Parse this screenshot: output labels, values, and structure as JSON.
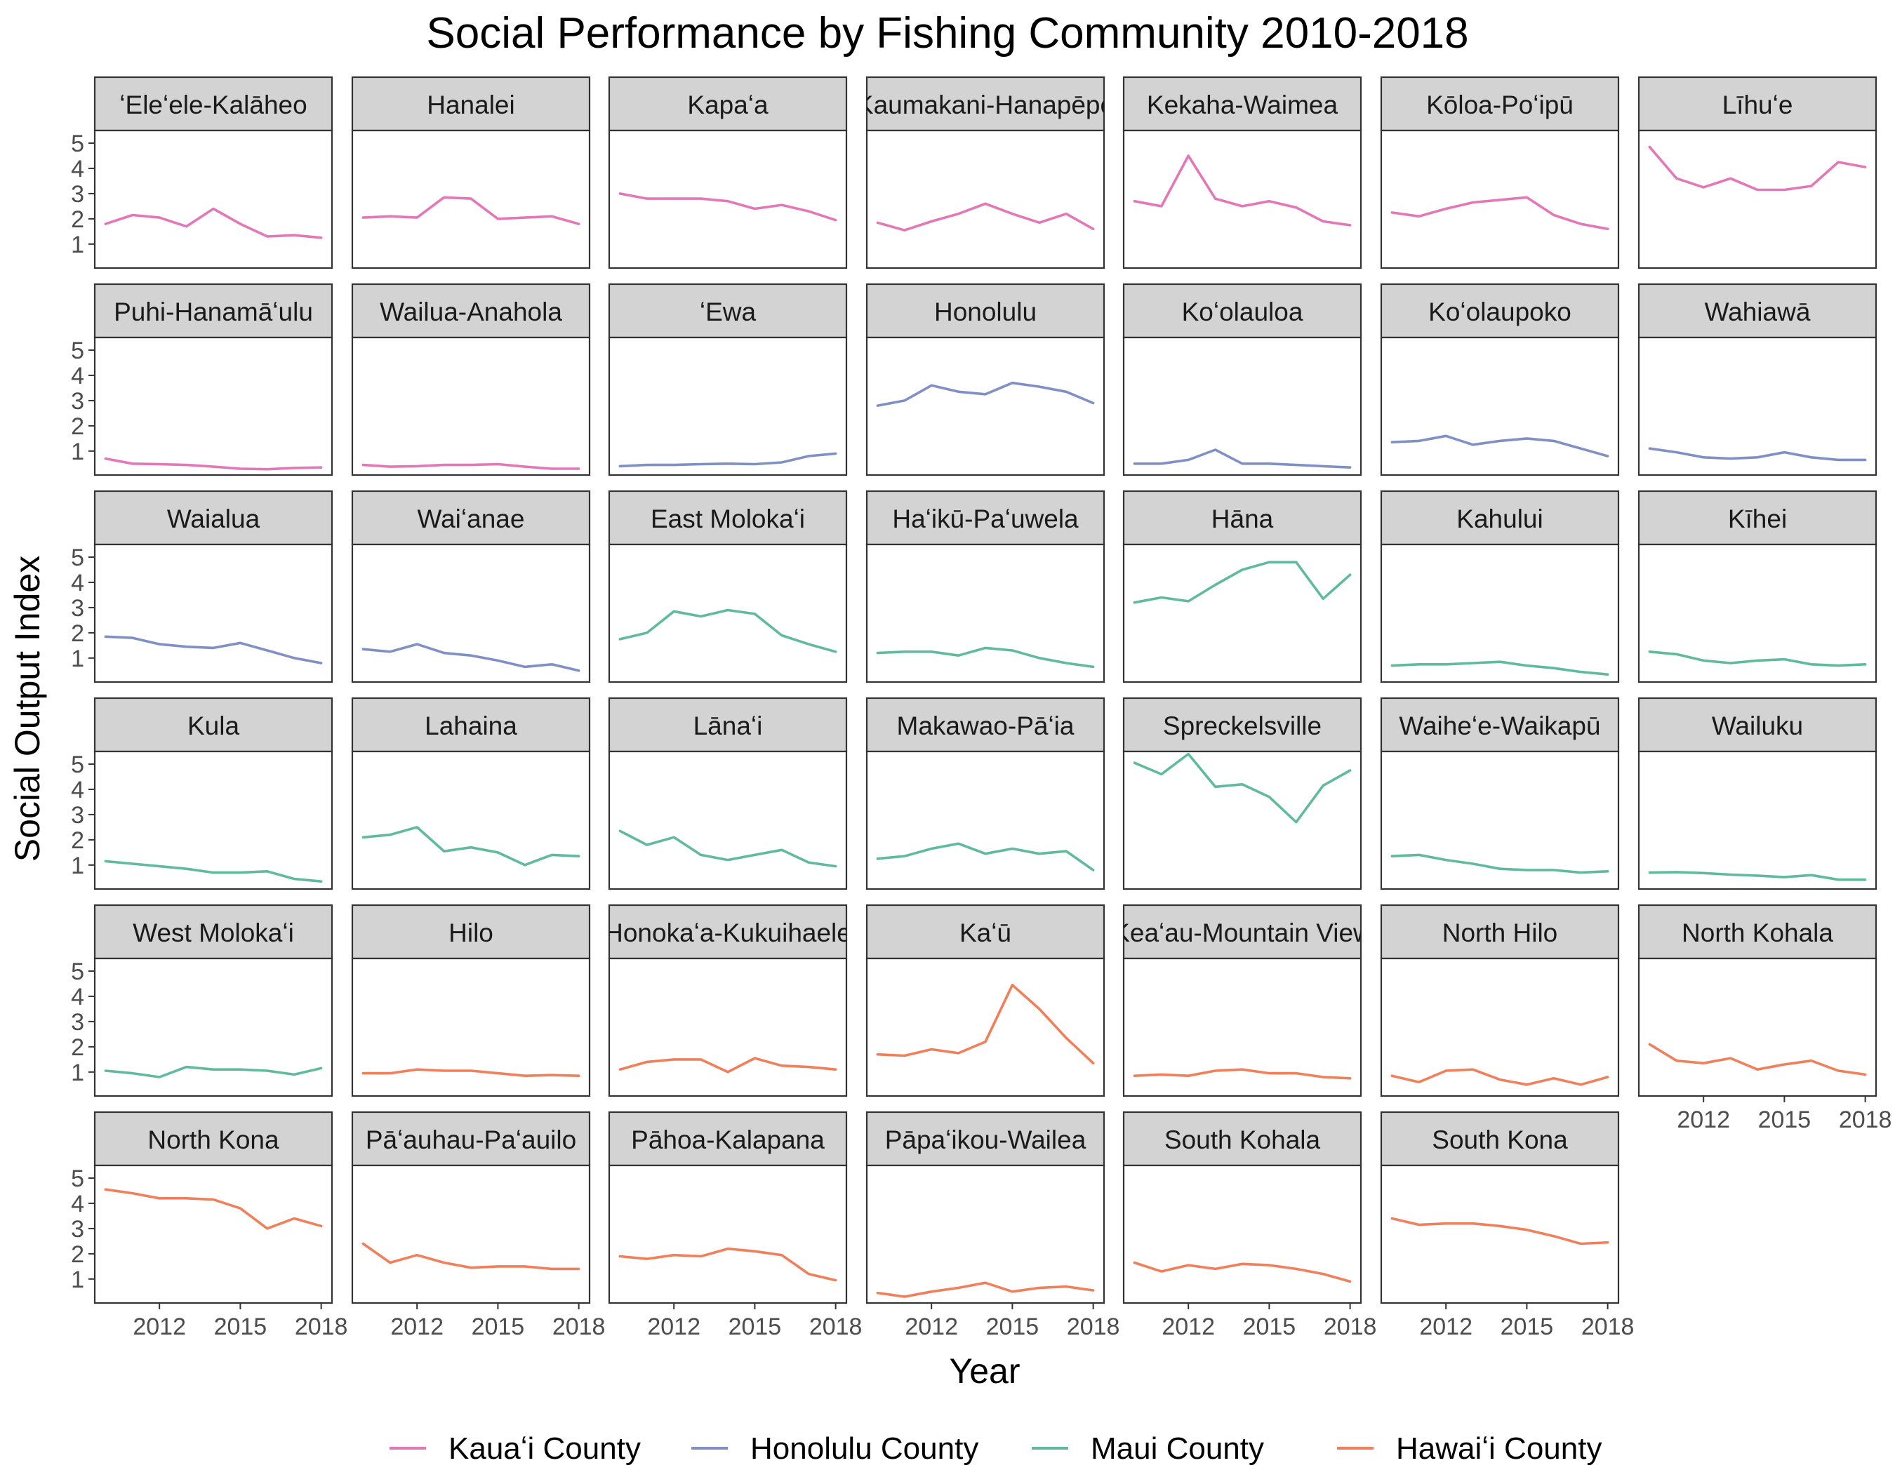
{
  "chart_data": {
    "type": "line",
    "title": "Social Performance by Fishing Community 2010-2018",
    "xlabel": "Year",
    "ylabel": "Social Output Index",
    "x": [
      2010,
      2011,
      2012,
      2013,
      2014,
      2015,
      2016,
      2017,
      2018
    ],
    "x_ticks": [
      2012,
      2015,
      2018
    ],
    "x_tick_labels": [
      "2012",
      "2015",
      "2018"
    ],
    "y_ticks": [
      1,
      2,
      3,
      4,
      5
    ],
    "y_tick_labels": [
      "1",
      "2",
      "3",
      "4",
      "5"
    ],
    "xlim": [
      2009.6,
      2018.4
    ],
    "ylim": [
      0.05,
      5.5
    ],
    "grid": false,
    "legend_position": "bottom",
    "legend": [
      {
        "key": "kauai",
        "label": "Kauaʻi County",
        "color": "#e377b8"
      },
      {
        "key": "honolulu",
        "label": "Honolulu County",
        "color": "#8090c6"
      },
      {
        "key": "maui",
        "label": "Maui County",
        "color": "#5fbb9a"
      },
      {
        "key": "hawaii",
        "label": "Hawaiʻi County",
        "color": "#f07f5a"
      }
    ],
    "series": [
      {
        "name": "ʻEleʻele-Kalāheo",
        "county": "kauai",
        "values": [
          1.8,
          2.15,
          2.05,
          1.7,
          2.4,
          1.8,
          1.3,
          1.35,
          1.25
        ]
      },
      {
        "name": "Hanalei",
        "county": "kauai",
        "values": [
          2.05,
          2.1,
          2.05,
          2.85,
          2.8,
          2.0,
          2.05,
          2.1,
          1.8
        ]
      },
      {
        "name": "Kapaʻa",
        "county": "kauai",
        "values": [
          3.0,
          2.8,
          2.8,
          2.8,
          2.7,
          2.4,
          2.55,
          2.3,
          1.95
        ]
      },
      {
        "name": "Kaumakani-Hanapēpē",
        "county": "kauai",
        "values": [
          1.85,
          1.55,
          1.9,
          2.2,
          2.6,
          2.2,
          1.85,
          2.2,
          1.6
        ]
      },
      {
        "name": "Kekaha-Waimea",
        "county": "kauai",
        "values": [
          2.7,
          2.5,
          4.5,
          2.8,
          2.5,
          2.7,
          2.45,
          1.9,
          1.75
        ]
      },
      {
        "name": "Kōloa-Poʻipū",
        "county": "kauai",
        "values": [
          2.25,
          2.1,
          2.4,
          2.65,
          2.75,
          2.85,
          2.15,
          1.8,
          1.6
        ]
      },
      {
        "name": "Līhuʻe",
        "county": "kauai",
        "values": [
          4.85,
          3.6,
          3.25,
          3.6,
          3.15,
          3.15,
          3.3,
          4.25,
          4.05
        ]
      },
      {
        "name": "Puhi-Hanamāʻulu",
        "county": "kauai",
        "values": [
          0.7,
          0.5,
          0.48,
          0.45,
          0.38,
          0.3,
          0.28,
          0.33,
          0.35
        ]
      },
      {
        "name": "Wailua-Anahola",
        "county": "kauai",
        "values": [
          0.45,
          0.38,
          0.4,
          0.45,
          0.45,
          0.48,
          0.38,
          0.3,
          0.3
        ]
      },
      {
        "name": "ʻEwa",
        "county": "honolulu",
        "values": [
          0.4,
          0.45,
          0.45,
          0.48,
          0.5,
          0.48,
          0.55,
          0.8,
          0.9
        ]
      },
      {
        "name": "Honolulu",
        "county": "honolulu",
        "values": [
          2.8,
          3.0,
          3.6,
          3.35,
          3.25,
          3.7,
          3.55,
          3.35,
          2.9
        ]
      },
      {
        "name": "Koʻolauloa",
        "county": "honolulu",
        "values": [
          0.5,
          0.5,
          0.65,
          1.05,
          0.5,
          0.5,
          0.45,
          0.4,
          0.35
        ]
      },
      {
        "name": "Koʻolaupoko",
        "county": "honolulu",
        "values": [
          1.35,
          1.4,
          1.6,
          1.25,
          1.4,
          1.5,
          1.4,
          1.1,
          0.8
        ]
      },
      {
        "name": "Wahiawā",
        "county": "honolulu",
        "values": [
          1.1,
          0.95,
          0.75,
          0.7,
          0.75,
          0.95,
          0.75,
          0.65,
          0.65
        ]
      },
      {
        "name": "Waialua",
        "county": "honolulu",
        "values": [
          1.85,
          1.8,
          1.55,
          1.45,
          1.4,
          1.6,
          1.3,
          1.0,
          0.8
        ]
      },
      {
        "name": "Waiʻanae",
        "county": "honolulu",
        "values": [
          1.35,
          1.25,
          1.55,
          1.2,
          1.1,
          0.9,
          0.65,
          0.75,
          0.5
        ]
      },
      {
        "name": "East Molokaʻi",
        "county": "maui",
        "values": [
          1.75,
          2.0,
          2.85,
          2.65,
          2.9,
          2.75,
          1.9,
          1.55,
          1.25
        ]
      },
      {
        "name": "Haʻikū-Paʻuwela",
        "county": "maui",
        "values": [
          1.2,
          1.25,
          1.25,
          1.1,
          1.4,
          1.3,
          1.0,
          0.8,
          0.65
        ]
      },
      {
        "name": "Hāna",
        "county": "maui",
        "values": [
          3.2,
          3.4,
          3.25,
          3.9,
          4.5,
          4.8,
          4.8,
          3.35,
          4.3
        ]
      },
      {
        "name": "Kahului",
        "county": "maui",
        "values": [
          0.7,
          0.75,
          0.75,
          0.8,
          0.85,
          0.7,
          0.6,
          0.45,
          0.35
        ]
      },
      {
        "name": "Kīhei",
        "county": "maui",
        "values": [
          1.25,
          1.15,
          0.9,
          0.8,
          0.9,
          0.95,
          0.75,
          0.7,
          0.75
        ]
      },
      {
        "name": "Kula",
        "county": "maui",
        "values": [
          1.15,
          1.05,
          0.95,
          0.85,
          0.7,
          0.7,
          0.75,
          0.45,
          0.35
        ]
      },
      {
        "name": "Lahaina",
        "county": "maui",
        "values": [
          2.1,
          2.2,
          2.5,
          1.55,
          1.7,
          1.5,
          1.0,
          1.4,
          1.35
        ]
      },
      {
        "name": "Lānaʻi",
        "county": "maui",
        "values": [
          2.35,
          1.8,
          2.1,
          1.4,
          1.2,
          1.4,
          1.6,
          1.1,
          0.95
        ]
      },
      {
        "name": "Makawao-Pāʻia",
        "county": "maui",
        "values": [
          1.25,
          1.35,
          1.65,
          1.85,
          1.45,
          1.65,
          1.45,
          1.55,
          0.8
        ]
      },
      {
        "name": "Spreckelsville",
        "county": "maui",
        "values": [
          5.05,
          4.6,
          5.4,
          4.1,
          4.2,
          3.7,
          2.7,
          4.15,
          4.75
        ]
      },
      {
        "name": "Waiheʻe-Waikapū",
        "county": "maui",
        "values": [
          1.35,
          1.4,
          1.2,
          1.05,
          0.85,
          0.8,
          0.8,
          0.7,
          0.75
        ]
      },
      {
        "name": "Wailuku",
        "county": "maui",
        "values": [
          0.7,
          0.72,
          0.68,
          0.62,
          0.58,
          0.52,
          0.6,
          0.42,
          0.42
        ]
      },
      {
        "name": "West Molokaʻi",
        "county": "maui",
        "values": [
          1.05,
          0.95,
          0.8,
          1.2,
          1.1,
          1.1,
          1.05,
          0.9,
          1.15
        ]
      },
      {
        "name": "Hilo",
        "county": "hawaii",
        "values": [
          0.95,
          0.95,
          1.1,
          1.05,
          1.05,
          0.95,
          0.85,
          0.88,
          0.85
        ]
      },
      {
        "name": "Honokaʻa-Kukuihaele",
        "county": "hawaii",
        "values": [
          1.1,
          1.4,
          1.5,
          1.5,
          1.0,
          1.55,
          1.25,
          1.2,
          1.1
        ]
      },
      {
        "name": "Kaʻū",
        "county": "hawaii",
        "values": [
          1.7,
          1.65,
          1.9,
          1.75,
          2.2,
          4.45,
          3.5,
          2.35,
          1.35
        ]
      },
      {
        "name": "Keaʻau-Mountain View",
        "county": "hawaii",
        "values": [
          0.85,
          0.9,
          0.85,
          1.05,
          1.1,
          0.95,
          0.95,
          0.8,
          0.75
        ]
      },
      {
        "name": "North Hilo",
        "county": "hawaii",
        "values": [
          0.85,
          0.6,
          1.05,
          1.1,
          0.7,
          0.5,
          0.75,
          0.5,
          0.8
        ]
      },
      {
        "name": "North Kohala",
        "county": "hawaii",
        "values": [
          2.1,
          1.45,
          1.35,
          1.55,
          1.1,
          1.3,
          1.45,
          1.05,
          0.9
        ]
      },
      {
        "name": "North Kona",
        "county": "hawaii",
        "values": [
          4.55,
          4.4,
          4.2,
          4.2,
          4.15,
          3.8,
          3.0,
          3.4,
          3.1
        ]
      },
      {
        "name": "Pāʻauhau-Paʻauilo",
        "county": "hawaii",
        "values": [
          2.4,
          1.65,
          1.95,
          1.65,
          1.45,
          1.5,
          1.5,
          1.4,
          1.4
        ]
      },
      {
        "name": "Pāhoa-Kalapana",
        "county": "hawaii",
        "values": [
          1.9,
          1.8,
          1.95,
          1.9,
          2.2,
          2.1,
          1.95,
          1.2,
          0.95
        ]
      },
      {
        "name": "Pāpaʻikou-Wailea",
        "county": "hawaii",
        "values": [
          0.45,
          0.3,
          0.5,
          0.65,
          0.85,
          0.5,
          0.65,
          0.7,
          0.55
        ]
      },
      {
        "name": "South Kohala",
        "county": "hawaii",
        "values": [
          1.65,
          1.3,
          1.55,
          1.4,
          1.6,
          1.55,
          1.4,
          1.2,
          0.9
        ]
      },
      {
        "name": "South Kona",
        "county": "hawaii",
        "values": [
          3.4,
          3.15,
          3.2,
          3.2,
          3.1,
          2.95,
          2.7,
          2.4,
          2.45
        ]
      }
    ]
  }
}
